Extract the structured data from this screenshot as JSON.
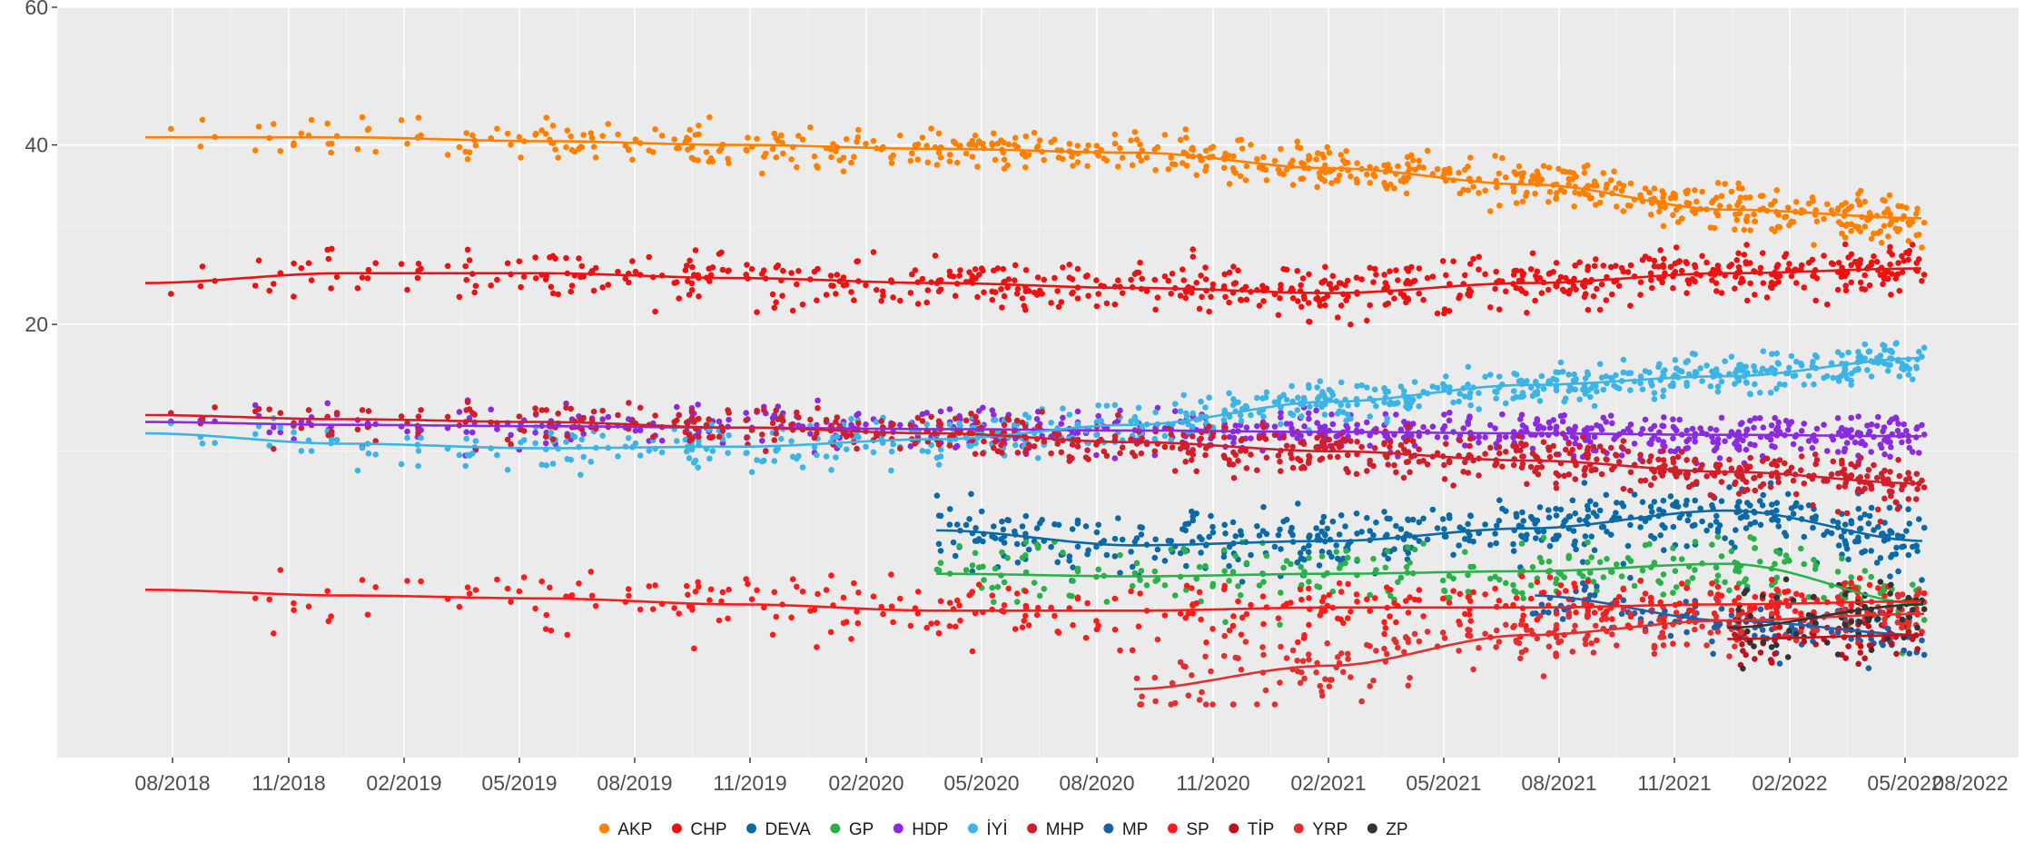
{
  "chart_data": {
    "type": "scatter",
    "title": "",
    "xlabel": "",
    "ylabel": "",
    "y_scale": "sqrt",
    "ylim": [
      0,
      60
    ],
    "y_ticks": [
      20,
      40,
      60
    ],
    "y_tick_labels": [
      "20",
      "40",
      "60"
    ],
    "x_tick_labels": [
      "08/2018",
      "11/2018",
      "02/2019",
      "05/2019",
      "08/2019",
      "11/2019",
      "02/2020",
      "05/2020",
      "08/2020",
      "11/2020",
      "02/2021",
      "05/2021",
      "08/2021",
      "11/2021",
      "02/2022",
      "05/2022",
      "08/2022"
    ],
    "grid": true,
    "legend_position": "bottom",
    "series": [
      {
        "name": "AKP",
        "color": "#ff7f00",
        "center": [
          41,
          41,
          40.5,
          40,
          39.5,
          39,
          37,
          35,
          32,
          31
        ],
        "spread": 2.5
      },
      {
        "name": "CHP",
        "color": "#ee1111",
        "center": [
          24,
          25,
          25,
          24.5,
          24,
          23.5,
          23,
          24,
          25,
          25.5
        ],
        "spread": 2.5
      },
      {
        "name": "DEVA",
        "color": "#0a6aa8",
        "center": [
          null,
          null,
          null,
          null,
          5.5,
          4.8,
          5.0,
          5.6,
          6.5,
          5.0
        ],
        "spread": 1.4
      },
      {
        "name": "GP",
        "color": "#2bb14a",
        "center": [
          null,
          null,
          null,
          null,
          3.6,
          3.5,
          3.6,
          3.7,
          4.0,
          2.5
        ],
        "spread": 1.2
      },
      {
        "name": "HDP",
        "color": "#8a2be2",
        "center": [
          12,
          11.8,
          11.7,
          11.6,
          11.5,
          11.4,
          11.3,
          11.2,
          11.1,
          11.0
        ],
        "spread": 1.4
      },
      {
        "name": "İYİ",
        "color": "#3cb4e5",
        "center": [
          11.2,
          10.5,
          10.2,
          10.3,
          10.8,
          11.8,
          13.5,
          14.8,
          15.5,
          17.0
        ],
        "spread": 1.5
      },
      {
        "name": "MHP",
        "color": "#d11f2a",
        "center": [
          12.5,
          12.2,
          12.0,
          11.6,
          11.2,
          10.6,
          10.0,
          9.4,
          8.7,
          8.0
        ],
        "spread": 1.4
      },
      {
        "name": "MP",
        "color": "#1f5fa8",
        "center": [
          null,
          null,
          null,
          null,
          null,
          null,
          null,
          2.8,
          2.0,
          1.6
        ],
        "spread": 0.8
      },
      {
        "name": "SP",
        "color": "#ff1a1a",
        "center": [
          3.0,
          2.8,
          2.7,
          2.5,
          2.3,
          2.3,
          2.4,
          2.4,
          2.5,
          2.6
        ],
        "spread": 0.9
      },
      {
        "name": "TİP",
        "color": "#c0101a",
        "center": [
          null,
          null,
          null,
          null,
          null,
          null,
          null,
          null,
          1.5,
          1.6
        ],
        "spread": 0.6
      },
      {
        "name": "YRP",
        "color": "#e23030",
        "center": [
          null,
          null,
          null,
          null,
          null,
          0.5,
          0.9,
          1.6,
          2.0,
          2.2
        ],
        "spread": 0.7
      },
      {
        "name": "ZP",
        "color": "#333333",
        "center": [
          null,
          null,
          null,
          null,
          null,
          null,
          null,
          null,
          1.8,
          2.5
        ],
        "spread": 1.0
      }
    ]
  },
  "legend": [
    {
      "name": "AKP",
      "color": "#ff7f00"
    },
    {
      "name": "CHP",
      "color": "#ee1111"
    },
    {
      "name": "DEVA",
      "color": "#0a6aa8"
    },
    {
      "name": "GP",
      "color": "#2bb14a"
    },
    {
      "name": "HDP",
      "color": "#8a2be2"
    },
    {
      "name": "İYİ",
      "color": "#3cb4e5"
    },
    {
      "name": "MHP",
      "color": "#d11f2a"
    },
    {
      "name": "MP",
      "color": "#1f5fa8"
    },
    {
      "name": "SP",
      "color": "#ff1a1a"
    },
    {
      "name": "TİP",
      "color": "#c0101a"
    },
    {
      "name": "YRP",
      "color": "#e23030"
    },
    {
      "name": "ZP",
      "color": "#333333"
    }
  ]
}
